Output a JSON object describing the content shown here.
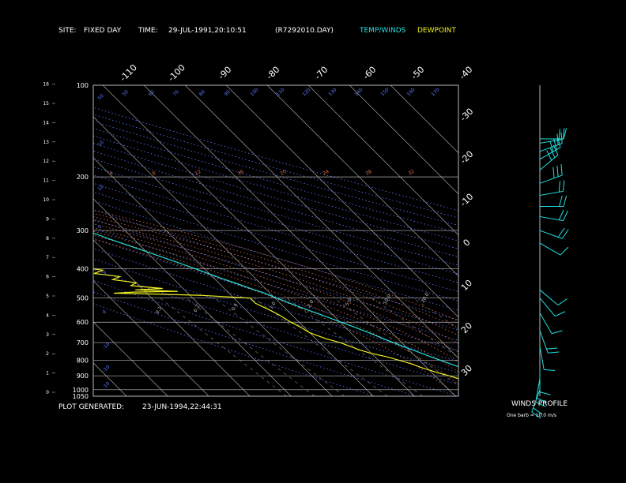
{
  "header": {
    "site_label": "SITE:",
    "site_value": "FIXED DAY",
    "time_label": "TIME:",
    "time_value": "29-JUL-1991,20:10:51",
    "file_id": "(R7292010.DAY)",
    "legend_temp": "TEMP/WINDS",
    "legend_dew": "DEWPOINT"
  },
  "footer": {
    "generated_label": "PLOT GENERATED:",
    "generated_value": "23-JUN-1994,22:44:31"
  },
  "winds": {
    "title": "WINDS PROFILE",
    "note": "One barb = 10.0 m/s"
  },
  "colors": {
    "background": "#000000",
    "temp": "#22e0e0",
    "dewpoint": "#f0f020",
    "isobar": "#b8b8b8",
    "isotherm": "#b8b8b8",
    "dry_adiabat": "#5a78ff",
    "moist_adiabat": "#e07050",
    "mixing_ratio": "#6a6a6a",
    "text": "#ffffff"
  },
  "chart_data": {
    "type": "line",
    "subtype": "skew-t log-p",
    "pressure_axis_labels": [
      "100",
      "200",
      "300",
      "400",
      "500",
      "600",
      "700",
      "800",
      "900",
      "1000",
      "1050"
    ],
    "height_axis_labels": [
      "0",
      "1",
      "2",
      "3",
      "4",
      "5",
      "6",
      "7",
      "8",
      "9",
      "10",
      "11",
      "12",
      "13",
      "14",
      "15",
      "16"
    ],
    "isotherm_top_labels": [
      "-110",
      "-100",
      "-90",
      "-80",
      "-70",
      "-60",
      "-50",
      "-40"
    ],
    "isotherm_right_labels": [
      "-30",
      "-20",
      "-10",
      "0",
      "10",
      "20",
      "30"
    ],
    "dry_adiabat_labels": [
      "50",
      "50",
      "60",
      "70",
      "80",
      "90",
      "100",
      "110",
      "120",
      "130",
      "140",
      "150",
      "160",
      "170",
      "10",
      "10",
      "0",
      "0",
      "0",
      "-10",
      "-10",
      "-10"
    ],
    "moist_adiabat_labels": [
      "4",
      "8",
      "12",
      "16",
      "20",
      "24",
      "28",
      "32"
    ],
    "mixing_ratio_labels": [
      "0.1",
      "0.2",
      "0.4",
      "1.0",
      "2.0",
      "5.0",
      "10.0",
      "20.0"
    ],
    "temperature": {
      "name": "TEMP/WINDS",
      "p": [
        1010,
        990,
        970,
        950,
        925,
        900,
        880,
        850,
        820,
        800,
        780,
        760,
        740,
        720,
        700,
        680,
        650,
        620,
        600,
        570,
        550,
        520,
        500,
        480,
        470,
        450,
        430,
        400,
        380,
        350,
        320,
        300,
        280,
        260,
        250,
        240,
        230,
        220,
        210,
        200,
        190,
        180,
        170,
        160,
        155,
        150,
        145,
        140,
        130,
        125,
        120,
        115,
        110,
        105,
        102
      ],
      "t": [
        20,
        18,
        16,
        14.5,
        12.8,
        11.3,
        10.2,
        8.6,
        6.5,
        5.1,
        3.6,
        2.3,
        0.9,
        -0.7,
        -2.0,
        -3.5,
        -5.6,
        -8.0,
        -9.8,
        -12.6,
        -14.6,
        -17.6,
        -19.6,
        -21.5,
        -23.0,
        -25.5,
        -28.3,
        -32.3,
        -35.3,
        -40.3,
        -45.8,
        -49.4,
        -53.6,
        -57.8,
        -60.1,
        -62.4,
        -64.8,
        -67.0,
        -68.5,
        -70.0,
        -71.5,
        -72.8,
        -73.8,
        -74.8,
        -75.0,
        -75.0,
        -75.2,
        -75.3,
        -75.7,
        -76.3,
        -76.2,
        -75.8,
        -76.0,
        -75.6,
        -74.5
      ]
    },
    "dewpoint": {
      "name": "DEWPOINT",
      "p": [
        1010,
        990,
        970,
        950,
        920,
        900,
        880,
        850,
        820,
        800,
        780,
        760,
        740,
        720,
        700,
        680,
        650,
        620,
        600,
        570,
        550,
        520,
        500,
        490,
        485,
        482,
        478,
        475,
        470,
        465,
        455,
        445,
        435,
        425,
        415,
        405,
        395,
        385,
        375,
        360,
        350,
        340,
        330,
        320,
        310,
        300,
        290,
        280,
        270,
        260,
        250,
        240,
        230,
        220,
        210,
        200
      ],
      "td": [
        10,
        8,
        7.5,
        6.5,
        5,
        3.5,
        1.5,
        -1.0,
        -3.0,
        -5.0,
        -7.0,
        -10.0,
        -12.0,
        -13.5,
        -15.0,
        -17.5,
        -20.0,
        -21.0,
        -22.0,
        -23.0,
        -24.0,
        -26.0,
        -26.0,
        -37.0,
        -48.0,
        -58.0,
        -53.0,
        -42.0,
        -52.0,
        -45.0,
        -52.0,
        -50.0,
        -55.0,
        -52.5,
        -58.0,
        -55.0,
        -60.0,
        -58.5,
        -62.0,
        -67.5,
        -70.0,
        -75.0,
        -69.0,
        -78.5,
        -71.0,
        -80.0,
        -74.0,
        -75.0,
        -76.0,
        -79.0,
        -80.0,
        -81.0,
        -84.0,
        -87.0,
        -92.0,
        -104.0
      ]
    },
    "wind": {
      "p": [
        150,
        155,
        165,
        175,
        190,
        210,
        230,
        250,
        270,
        300,
        330,
        470,
        500,
        560,
        640,
        720,
        850,
        920,
        1000
      ],
      "speed_ms": [
        10,
        15,
        20,
        25,
        30,
        25,
        20,
        18,
        22,
        15,
        10,
        5,
        8,
        12,
        15,
        10,
        12,
        18,
        22
      ],
      "dir_deg": [
        270,
        280,
        290,
        300,
        310,
        290,
        280,
        270,
        260,
        250,
        240,
        230,
        220,
        210,
        200,
        190,
        180,
        170,
        160
      ]
    },
    "title": "",
    "xlabel": "",
    "ylabel": "",
    "pressure_range_hPa": [
      100,
      1050
    ],
    "grid": true,
    "legend": "top"
  }
}
